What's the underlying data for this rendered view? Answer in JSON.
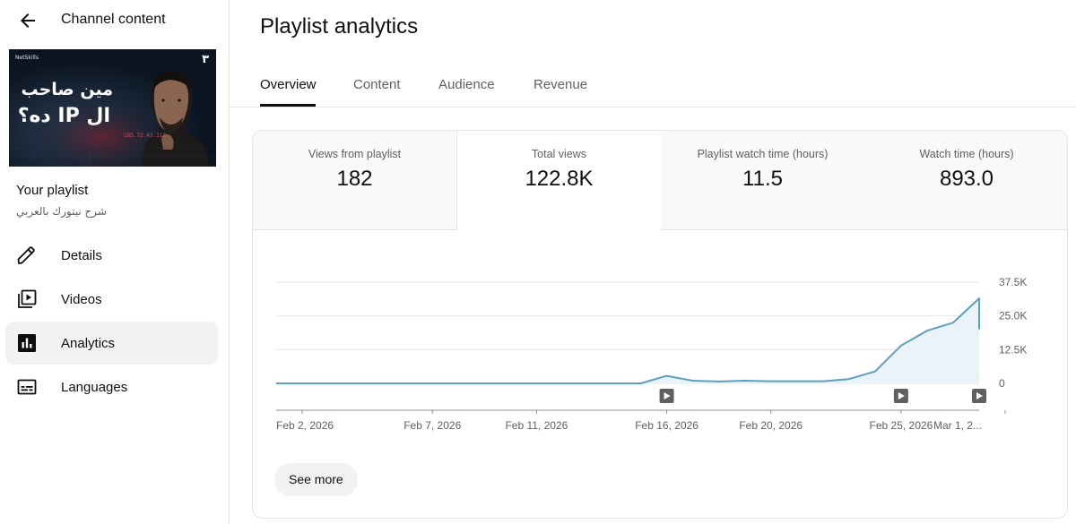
{
  "sidebar": {
    "title": "Channel content",
    "thumbnail": {
      "title_line1": "مين صاحب",
      "title_line2": "ال IP ده؟",
      "number": "٣",
      "logo_text": "NetSkills",
      "ip_text": "185.72.43.112"
    },
    "playlist_label": "Your playlist",
    "playlist_name": "شرح نيتورك بالعربي",
    "nav": [
      {
        "label": "Details",
        "icon": "pencil-icon"
      },
      {
        "label": "Videos",
        "icon": "video-library-icon"
      },
      {
        "label": "Analytics",
        "icon": "analytics-icon"
      },
      {
        "label": "Languages",
        "icon": "subtitles-icon"
      }
    ]
  },
  "main": {
    "title": "Playlist analytics",
    "tabs": [
      {
        "label": "Overview"
      },
      {
        "label": "Content"
      },
      {
        "label": "Audience"
      },
      {
        "label": "Revenue"
      }
    ],
    "metrics": [
      {
        "label": "Views from playlist",
        "value": "182"
      },
      {
        "label": "Total views",
        "value": "122.8K"
      },
      {
        "label": "Playlist watch time (hours)",
        "value": "11.5"
      },
      {
        "label": "Watch time (hours)",
        "value": "893.0"
      }
    ],
    "see_more_label": "See more"
  },
  "colors": {
    "accent_line": "#5aa0c4",
    "area_fill": "#eaf3f8",
    "text_primary": "#0f0f0f",
    "text_secondary": "#606060"
  },
  "chart_data": {
    "type": "area",
    "x": [
      "Feb 1",
      "Feb 2",
      "Feb 3",
      "Feb 4",
      "Feb 5",
      "Feb 6",
      "Feb 7",
      "Feb 8",
      "Feb 9",
      "Feb 10",
      "Feb 11",
      "Feb 12",
      "Feb 13",
      "Feb 14",
      "Feb 15",
      "Feb 16",
      "Feb 17",
      "Feb 18",
      "Feb 19",
      "Feb 20",
      "Feb 21",
      "Feb 22",
      "Feb 23",
      "Feb 24",
      "Feb 25",
      "Feb 26",
      "Feb 27",
      "Feb 28",
      "Mar 1",
      "Mar 2"
    ],
    "values": [
      0,
      0,
      0,
      0,
      0,
      0,
      0,
      0,
      0,
      0,
      0,
      0,
      0,
      0,
      0,
      2800,
      1000,
      700,
      1000,
      800,
      800,
      800,
      1600,
      4400,
      14000,
      19500,
      22500,
      31500,
      20000,
      20000
    ],
    "visible_points": 28,
    "xtick_labels": [
      "Feb 2, 2026",
      "Feb 7, 2026",
      "Feb 11, 2026",
      "Feb 16, 2026",
      "Feb 20, 2026",
      "Feb 25, 2026",
      "Mar 1, 2..."
    ],
    "xtick_positions": [
      1,
      6,
      10,
      15,
      19,
      24,
      28
    ],
    "ytick_labels": [
      "37.5K",
      "25.0K",
      "12.5K",
      "0"
    ],
    "ytick_values": [
      37500,
      25000,
      12500,
      0
    ],
    "ylim": [
      0,
      37500
    ],
    "video_markers": [
      15,
      24,
      27
    ],
    "grid": true,
    "title": "",
    "xlabel": "",
    "ylabel": ""
  }
}
